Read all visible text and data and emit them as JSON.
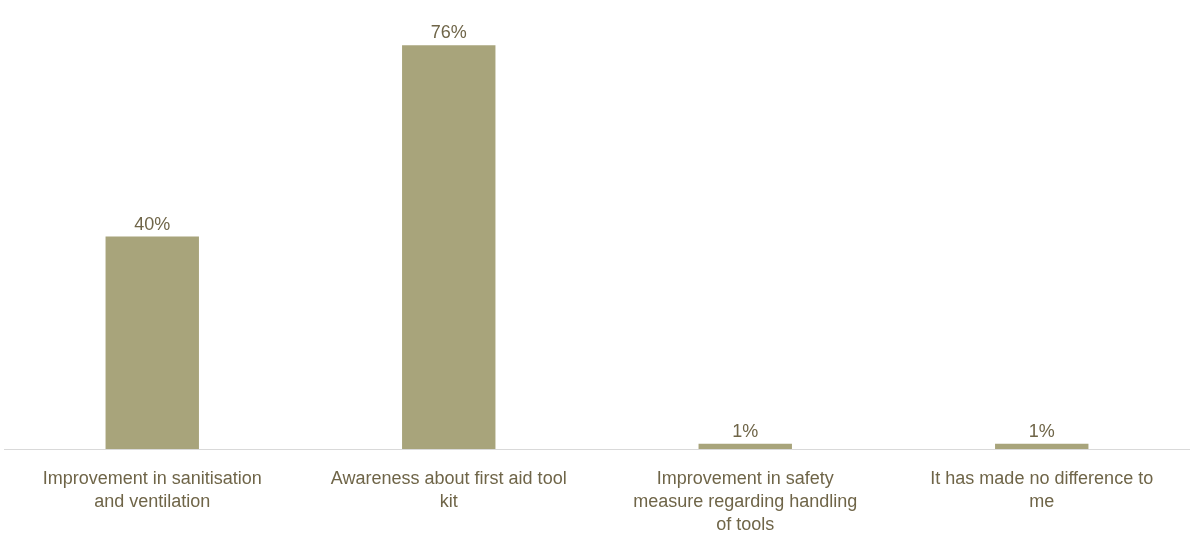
{
  "chart_data": {
    "type": "bar",
    "categories": [
      "Improvement in sanitisation and ventilation",
      "Awareness about first aid tool kit",
      "Improvement in safety measure regarding handling of tools",
      "It has made no difference to me"
    ],
    "values": [
      40,
      76,
      1,
      1
    ],
    "value_labels": [
      "40%",
      "76%",
      "1%",
      "1%"
    ],
    "color": "#a8a47b",
    "grid": false,
    "tick_labels": "x"
  }
}
